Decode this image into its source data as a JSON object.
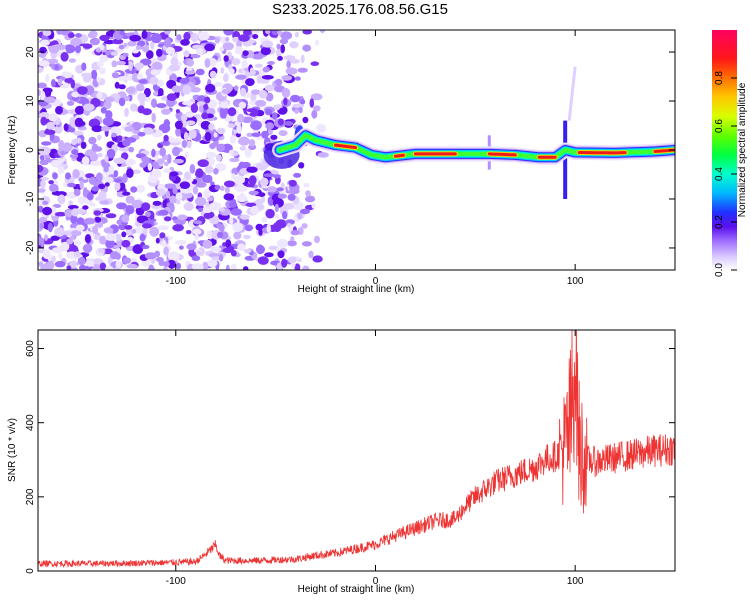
{
  "page_title": "S233.2025.176.08.56.G15",
  "chart_data": [
    {
      "type": "heatmap",
      "xlabel": "Height of straight line (km)",
      "ylabel": "Frequency (Hz)",
      "xlim": [
        -169,
        150
      ],
      "ylim": [
        -24.5,
        24.5
      ],
      "xticks": [
        -100,
        0,
        100
      ],
      "yticks": [
        -20,
        -10,
        0,
        10,
        20
      ],
      "colorbar": {
        "label": "Normalized spectral amplitude",
        "range": [
          0,
          1
        ],
        "ticks": [
          0.0,
          0.2,
          0.4,
          0.6,
          0.8
        ],
        "colormap": "rainbow (white → purple → blue → cyan → green → yellow → orange → red → pink)"
      },
      "ridge": {
        "description": "dominant frequency ridge",
        "x": [
          -48,
          -40,
          -35,
          -30,
          -20,
          -10,
          -2,
          5,
          20,
          40,
          57,
          70,
          82,
          90,
          95,
          100,
          120,
          140,
          150
        ],
        "y": [
          0,
          1,
          3,
          2,
          1,
          0.5,
          -1,
          -1.5,
          -0.8,
          -0.8,
          -0.8,
          -1,
          -1.5,
          -1.5,
          0,
          -0.5,
          -0.6,
          -0.3,
          0
        ]
      },
      "noise_region_x": [
        -169,
        -35
      ],
      "grid": false
    },
    {
      "type": "line",
      "xlabel": "Height of straight line (km)",
      "ylabel": "SNR (10 * v/v)",
      "xlim": [
        -169,
        150
      ],
      "ylim": [
        0,
        650
      ],
      "xticks": [
        -100,
        0,
        100
      ],
      "yticks": [
        0,
        200,
        400,
        600
      ],
      "color": "#ee3333",
      "series": [
        {
          "x": [
            -169,
            -140,
            -110,
            -90,
            -85,
            -80,
            -78,
            -75,
            -60,
            -40,
            -30,
            -20,
            -10,
            0,
            10,
            20,
            30,
            40,
            45,
            50,
            60,
            70,
            80,
            85,
            90,
            95,
            98,
            100,
            102,
            105,
            110,
            120,
            130,
            140,
            150
          ],
          "values": [
            20,
            20,
            22,
            25,
            45,
            70,
            40,
            28,
            28,
            32,
            42,
            48,
            60,
            72,
            95,
            115,
            135,
            140,
            175,
            200,
            240,
            260,
            280,
            300,
            310,
            330,
            400,
            600,
            330,
            300,
            295,
            305,
            315,
            325,
            330
          ]
        }
      ],
      "grid": false
    }
  ]
}
